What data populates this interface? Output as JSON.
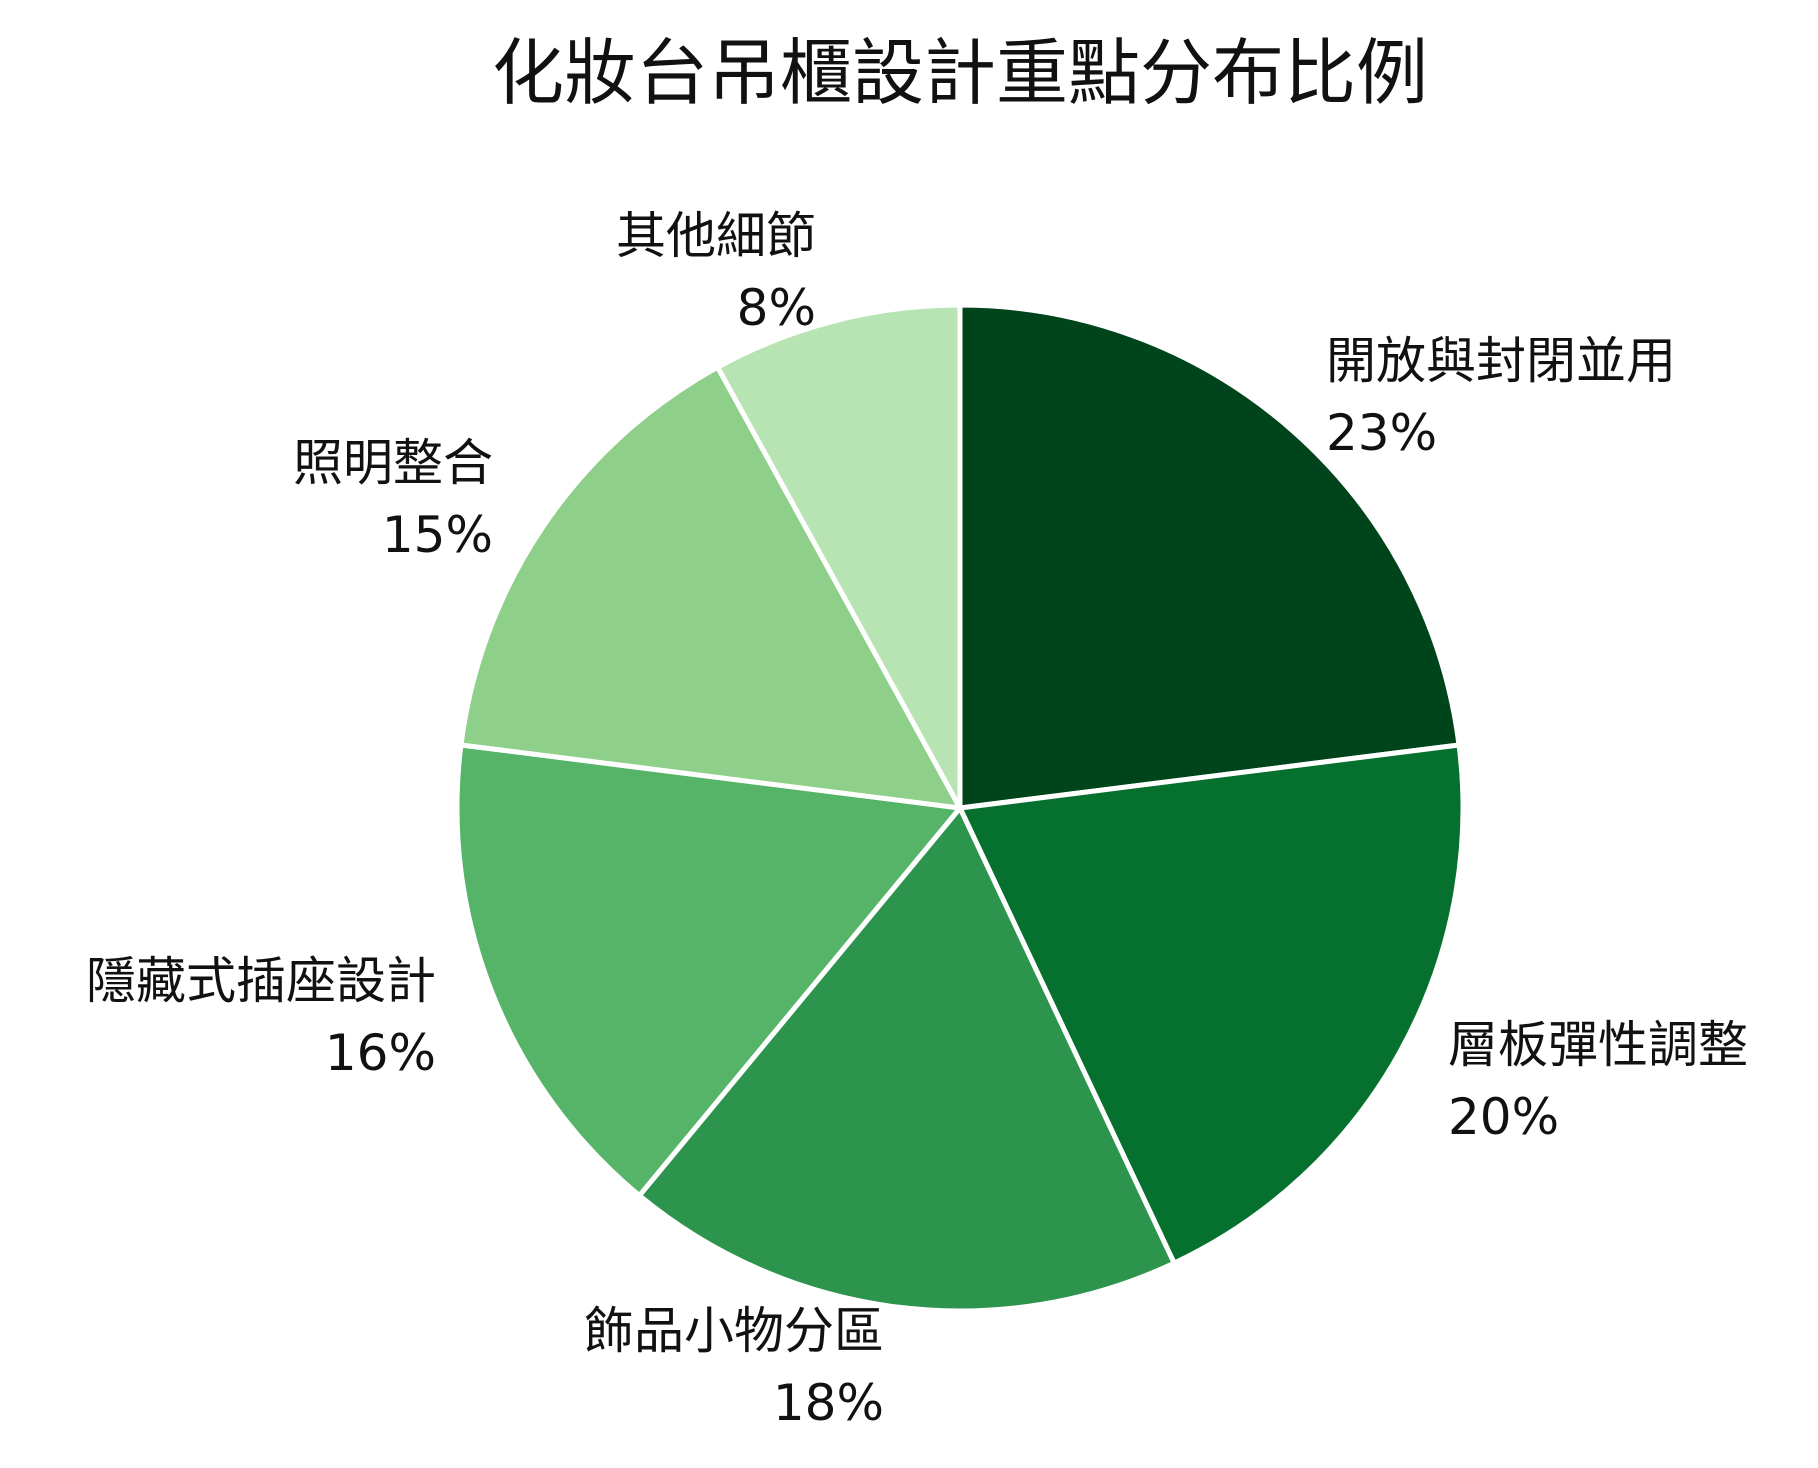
{
  "chart_data": {
    "type": "pie",
    "title": "化妝台吊櫃設計重點分布比例",
    "slices": [
      {
        "label": "開放與封閉並用",
        "value": 23,
        "value_label": "23%",
        "color": "#00441b"
      },
      {
        "label": "層板彈性調整",
        "value": 20,
        "value_label": "20%",
        "color": "#06702e"
      },
      {
        "label": "飾品小物分區",
        "value": 18,
        "value_label": "18%",
        "color": "#2c944d"
      },
      {
        "label": "隱藏式插座設計",
        "value": 16,
        "value_label": "16%",
        "color": "#55b468"
      },
      {
        "label": "照明整合",
        "value": 15,
        "value_label": "15%",
        "color": "#8ecf89"
      },
      {
        "label": "其他細節",
        "value": 8,
        "value_label": "8%",
        "color": "#b8e3b2"
      }
    ],
    "start_angle_deg": 90,
    "direction": "clockwise",
    "legend": "none"
  }
}
